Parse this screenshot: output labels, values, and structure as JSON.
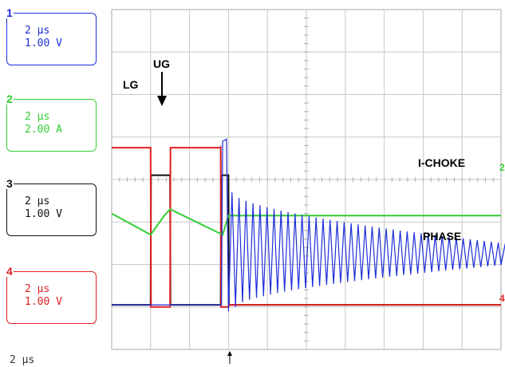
{
  "channels": [
    {
      "num": "1",
      "time": "2 μs",
      "scale": "1.00 V",
      "color": "#1f2fd8"
    },
    {
      "num": "2",
      "time": "2 μs",
      "scale": "2.00 A",
      "color": "#33cc33"
    },
    {
      "num": "3",
      "time": "2 μs",
      "scale": "1.00 V",
      "color": "#111111"
    },
    {
      "num": "4",
      "time": "2 μs",
      "scale": "1.00 V",
      "color": "#e02020"
    }
  ],
  "timebase": "2 μs",
  "chart_data": {
    "type": "line",
    "grid": true,
    "x_divisions": 10,
    "y_divisions": 8,
    "annotations": [
      "UG",
      "LG",
      "I-CHOKE",
      "PHASE"
    ],
    "series": [
      {
        "name": "UG",
        "color": "#111111",
        "x": [
          0,
          1.0,
          1.01,
          1.5,
          1.51,
          2.8,
          2.81,
          3.0,
          3.01,
          10
        ],
        "y": [
          -2.95,
          -2.95,
          0.1,
          0.1,
          -2.95,
          -2.95,
          0.1,
          0.1,
          -2.95,
          -2.95
        ]
      },
      {
        "name": "LG",
        "color": "#e02020",
        "x": [
          0,
          1.0,
          1.01,
          1.5,
          1.51,
          2.8,
          2.81,
          3.0,
          3.01,
          10
        ],
        "y": [
          0.75,
          0.75,
          -3.0,
          -3.0,
          0.75,
          0.75,
          -3.0,
          -3.0,
          -2.95,
          -2.95
        ]
      },
      {
        "name": "I-CHOKE",
        "color": "#33cc33",
        "x": [
          0,
          1.0,
          1.35,
          1.5,
          2.85,
          3.0,
          3.1,
          10
        ],
        "y": [
          -0.8,
          -1.3,
          -0.85,
          -0.7,
          -1.3,
          -0.85,
          -0.85,
          -0.85
        ],
        "label_values": "trace-shape"
      },
      {
        "name": "PHASE",
        "color": "#1f2fd8",
        "ringing": {
          "start": 3.0,
          "end": 10,
          "high_start": -0.3,
          "low_start": -3.0,
          "high_end": -1.5,
          "low_end": -2.0,
          "period": 0.18
        }
      }
    ]
  }
}
